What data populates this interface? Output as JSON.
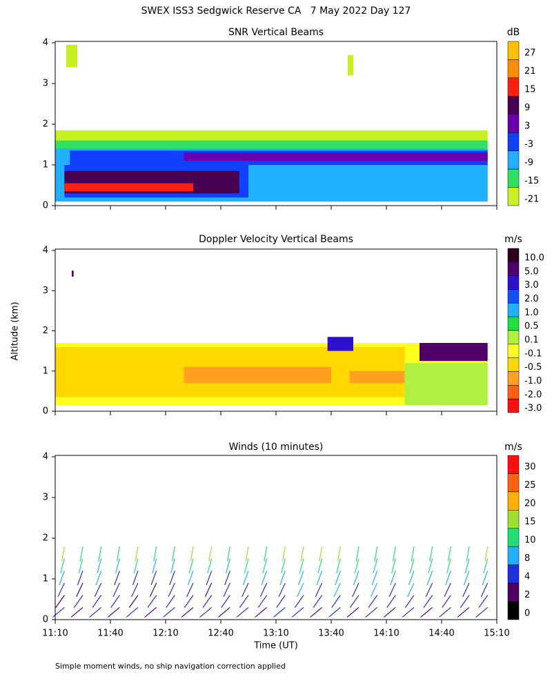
{
  "title": "SWEX ISS3 Sedgwick Reserve CA   7 May 2022 Day 127",
  "y_label": "Altitude (km)",
  "footnote": "Simple moment winds, no ship navigation correction applied",
  "chart_data": [
    {
      "type": "contour",
      "title": "SNR Vertical Beams",
      "colorbar_label": "dB",
      "colorbar": {
        "colors": [
          "#ffc000",
          "#ff8c00",
          "#ff2010",
          "#4a0050",
          "#6a00b0",
          "#1040ff",
          "#20b0ff",
          "#30e060",
          "#c8f020"
        ],
        "ticks": [
          27,
          21,
          15,
          9,
          3,
          -3,
          -9,
          -15,
          -21
        ]
      },
      "xlim": [
        670,
        910
      ],
      "ylim": [
        0,
        4
      ],
      "yticks": [
        0,
        1,
        2,
        3,
        4
      ],
      "layers": [
        {
          "value": -21,
          "start": 670,
          "end": 905,
          "bottom": 0.1,
          "top": 1.85
        },
        {
          "value": -15,
          "start": 670,
          "end": 905,
          "bottom": 0.1,
          "top": 1.6
        },
        {
          "value": -9,
          "start": 670,
          "end": 905,
          "bottom": 0.1,
          "top": 1.4
        },
        {
          "value": -3,
          "start": 678,
          "end": 905,
          "bottom": 1.0,
          "top": 1.35
        },
        {
          "value": 3,
          "start": 740,
          "end": 905,
          "bottom": 1.1,
          "top": 1.3
        },
        {
          "value": -3,
          "start": 675,
          "end": 775,
          "bottom": 0.2,
          "top": 1.0
        },
        {
          "value": 9,
          "start": 675,
          "end": 770,
          "bottom": 0.3,
          "top": 0.85
        },
        {
          "value": 15,
          "start": 675,
          "end": 745,
          "bottom": 0.35,
          "top": 0.55
        },
        {
          "value": -21,
          "start": 676,
          "end": 682,
          "bottom": 3.4,
          "top": 3.95
        },
        {
          "value": -21,
          "start": 829,
          "end": 832,
          "bottom": 3.2,
          "top": 3.7
        }
      ]
    },
    {
      "type": "contour",
      "title": "Doppler Velocity Vertical Beams",
      "colorbar_label": "m/s",
      "colorbar": {
        "colors": [
          "#300020",
          "#50006a",
          "#3010d0",
          "#1050ff",
          "#20b0ff",
          "#20e040",
          "#b0f040",
          "#ffff20",
          "#ffd800",
          "#ffa020",
          "#ff6010",
          "#ff1010"
        ],
        "ticks": [
          {
            "value": 10,
            "label": "10.0"
          },
          {
            "value": 5,
            "label": "5.0"
          },
          {
            "value": 3,
            "label": "3.0"
          },
          {
            "value": 2,
            "label": "2.0"
          },
          {
            "value": 1,
            "label": "1.0"
          },
          0.5,
          0.1,
          -0.1,
          -0.5,
          {
            "value": -1,
            "label": "-1.0"
          },
          {
            "value": -2,
            "label": "-2.0"
          },
          {
            "value": -3,
            "label": "-3.0"
          }
        ]
      },
      "xlim": [
        670,
        910
      ],
      "ylim": [
        0,
        4
      ],
      "yticks": [
        0,
        1,
        2,
        3,
        4
      ],
      "layers": [
        {
          "value": -0.1,
          "start": 670,
          "end": 905,
          "bottom": 0.15,
          "top": 1.7
        },
        {
          "value": -0.5,
          "start": 670,
          "end": 860,
          "bottom": 0.35,
          "top": 1.6
        },
        {
          "value": -1,
          "start": 740,
          "end": 820,
          "bottom": 0.7,
          "top": 1.1
        },
        {
          "value": -1,
          "start": 830,
          "end": 860,
          "bottom": 0.7,
          "top": 1.0
        },
        {
          "value": 0.1,
          "start": 860,
          "end": 905,
          "bottom": 0.15,
          "top": 1.2
        },
        {
          "value": 5,
          "start": 868,
          "end": 905,
          "bottom": 1.25,
          "top": 1.7
        },
        {
          "value": 3,
          "start": 818,
          "end": 832,
          "bottom": 1.5,
          "top": 1.85
        },
        {
          "value": 5,
          "start": 679,
          "end": 680,
          "bottom": 3.35,
          "top": 3.5
        }
      ]
    },
    {
      "type": "wind-barbs",
      "title": "Winds (10 minutes)",
      "colorbar_label": "m/s",
      "x_label": "Time (UT)",
      "colorbar": {
        "colors": [
          "#ff1010",
          "#ff6010",
          "#ffb000",
          "#a0e030",
          "#20e070",
          "#20b0ff",
          "#2030e0",
          "#500060",
          "#000000"
        ],
        "ticks": [
          30,
          25,
          20,
          15,
          10,
          8,
          4,
          2,
          0
        ]
      },
      "xlim": [
        670,
        910
      ],
      "ylim": [
        0,
        4
      ],
      "yticks": [
        0,
        1,
        2,
        3,
        4
      ],
      "xticks": [
        {
          "value": 670,
          "label": "11:10"
        },
        {
          "value": 700,
          "label": "11:40"
        },
        {
          "value": 730,
          "label": "12:10"
        },
        {
          "value": 760,
          "label": "12:40"
        },
        {
          "value": 790,
          "label": "13:10"
        },
        {
          "value": 820,
          "label": "13:40"
        },
        {
          "value": 850,
          "label": "14:10"
        },
        {
          "value": 880,
          "label": "14:40"
        },
        {
          "value": 910,
          "label": "15:10"
        }
      ],
      "wind_times": [
        675,
        685,
        695,
        705,
        715,
        725,
        735,
        745,
        755,
        765,
        775,
        785,
        795,
        805,
        815,
        825,
        835,
        845,
        855,
        865,
        875,
        885,
        895,
        905
      ],
      "wind_heights": [
        0.3,
        0.6,
        0.9,
        1.2,
        1.5,
        1.8
      ],
      "wind_direction": [
        230,
        215,
        205,
        200,
        195,
        190
      ],
      "wind_speed": [
        [
          3,
          2,
          4,
          6,
          10,
          13
        ],
        [
          2,
          3,
          2,
          5,
          9,
          12
        ],
        [
          3,
          4,
          3,
          6,
          8,
          11
        ],
        [
          2,
          3,
          4,
          5,
          8,
          10
        ],
        [
          3,
          2,
          3,
          4,
          9,
          14
        ],
        [
          2,
          3,
          2,
          4,
          7,
          12
        ],
        [
          3,
          4,
          3,
          5,
          8,
          10
        ],
        [
          2,
          3,
          4,
          6,
          9,
          13
        ],
        [
          3,
          3,
          2,
          5,
          10,
          14
        ],
        [
          2,
          4,
          3,
          5,
          8,
          11
        ],
        [
          3,
          3,
          4,
          6,
          10,
          13
        ],
        [
          2,
          3,
          5,
          7,
          10,
          12
        ],
        [
          3,
          4,
          5,
          7,
          9,
          13
        ],
        [
          3,
          4,
          6,
          7,
          11,
          14
        ],
        [
          2,
          4,
          5,
          8,
          11,
          15
        ],
        [
          3,
          4,
          6,
          8,
          10,
          13
        ],
        [
          2,
          3,
          5,
          7,
          9,
          12
        ],
        [
          3,
          4,
          6,
          7,
          10,
          12
        ],
        [
          2,
          4,
          5,
          7,
          9,
          11
        ],
        [
          3,
          4,
          6,
          7,
          10,
          12
        ],
        [
          2,
          4,
          5,
          6,
          9,
          11
        ],
        [
          3,
          4,
          5,
          7,
          10,
          12
        ],
        [
          2,
          3,
          5,
          6,
          8,
          11
        ],
        [
          3,
          4,
          5,
          7,
          9,
          16
        ]
      ]
    }
  ]
}
